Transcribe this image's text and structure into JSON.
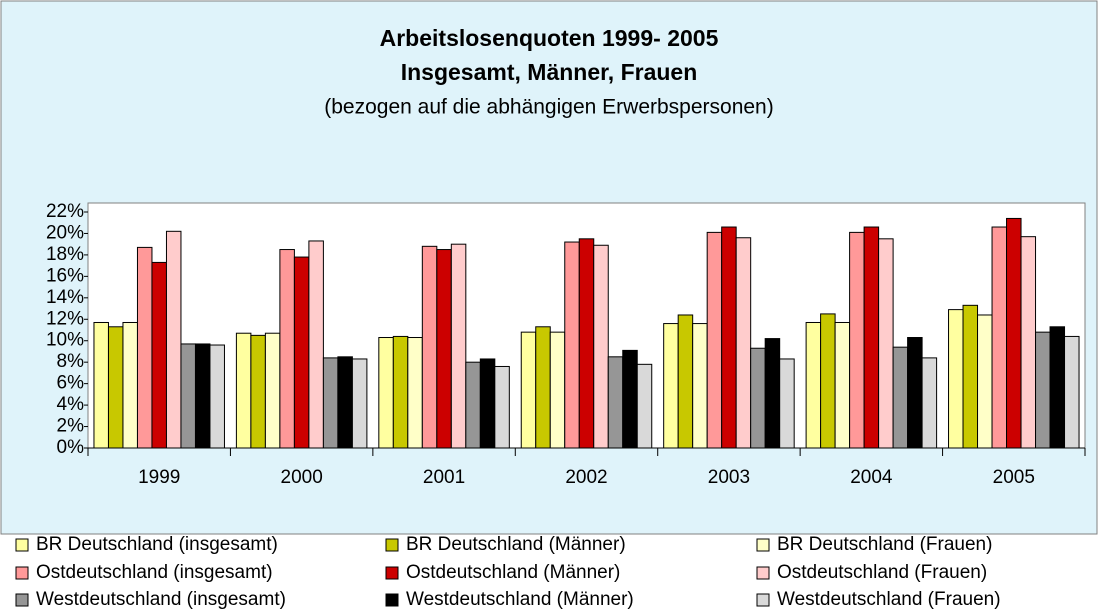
{
  "chart_data": {
    "type": "bar",
    "title": "Arbeitslosenquoten 1999- 2005",
    "subtitle": "Insgesamt, Männer, Frauen",
    "note": "(bezogen auf die abhängigen Erwerbspersonen)",
    "categories": [
      "1999",
      "2000",
      "2001",
      "2002",
      "2003",
      "2004",
      "2005"
    ],
    "series": [
      {
        "name": "BR Deutschland (insgesamt)",
        "color": "#ffffa0",
        "values": [
          11.7,
          10.7,
          10.3,
          10.8,
          11.6,
          11.7,
          12.9
        ]
      },
      {
        "name": "BR Deutschland (Männer)",
        "color": "#c8c800",
        "values": [
          11.3,
          10.5,
          10.4,
          11.3,
          12.4,
          12.5,
          13.3
        ]
      },
      {
        "name": "BR Deutschland (Frauen)",
        "color": "#ffffc8",
        "values": [
          11.7,
          10.7,
          10.3,
          10.8,
          11.6,
          11.7,
          12.4
        ]
      },
      {
        "name": "Ostdeutschland (insgesamt)",
        "color": "#ff9999",
        "values": [
          18.7,
          18.5,
          18.8,
          19.2,
          20.1,
          20.1,
          20.6
        ]
      },
      {
        "name": "Ostdeutschland (Männer)",
        "color": "#cc0000",
        "values": [
          17.3,
          17.8,
          18.5,
          19.5,
          20.6,
          20.6,
          21.4
        ]
      },
      {
        "name": "Ostdeutschland (Frauen)",
        "color": "#ffcccc",
        "values": [
          20.2,
          19.3,
          19.0,
          18.9,
          19.6,
          19.5,
          19.7
        ]
      },
      {
        "name": "Westdeutschland (insgesamt)",
        "color": "#969696",
        "values": [
          9.7,
          8.4,
          8.0,
          8.5,
          9.3,
          9.4,
          10.8
        ]
      },
      {
        "name": "Westdeutschland (Männer)",
        "color": "#000000",
        "values": [
          9.7,
          8.5,
          8.3,
          9.1,
          10.2,
          10.3,
          11.3
        ]
      },
      {
        "name": "Westdeutschland (Frauen)",
        "color": "#d9d9d9",
        "values": [
          9.6,
          8.3,
          7.6,
          7.8,
          8.3,
          8.4,
          10.4
        ]
      }
    ],
    "ylim": [
      0,
      22
    ],
    "yticks": [
      {
        "value": 0,
        "label": "0%"
      },
      {
        "value": 2,
        "label": "2%"
      },
      {
        "value": 4,
        "label": "4%"
      },
      {
        "value": 6,
        "label": "6%"
      },
      {
        "value": 8,
        "label": "8%"
      },
      {
        "value": 10,
        "label": "10%"
      },
      {
        "value": 12,
        "label": "12%"
      },
      {
        "value": 14,
        "label": "14%"
      },
      {
        "value": 16,
        "label": "16%"
      },
      {
        "value": 18,
        "label": "18%"
      },
      {
        "value": 20,
        "label": "20%"
      },
      {
        "value": 22,
        "label": "22%"
      }
    ],
    "legend": "bottom"
  }
}
